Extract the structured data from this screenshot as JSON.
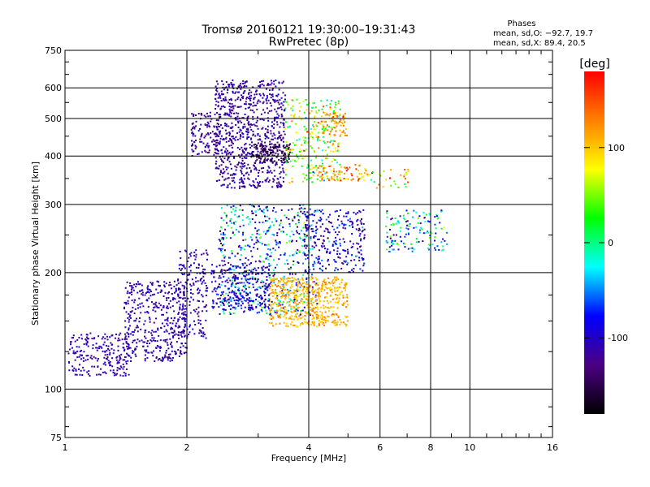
{
  "chart_data": {
    "type": "scatter",
    "title": "Tromsø 20160121 19:30:00–19:31:43",
    "subtitle": "RwPretec (8p)",
    "xlabel": "Frequency [MHz]",
    "ylabel": "Stationary phase Virtual Height [km]",
    "xscale": "log",
    "yscale": "log",
    "xlim": [
      1,
      16
    ],
    "ylim": [
      75,
      750
    ],
    "xticks": [
      1,
      2,
      4,
      6,
      8,
      10,
      16
    ],
    "yticks": [
      75,
      100,
      200,
      300,
      400,
      500,
      600,
      750
    ],
    "grid": true,
    "stats": {
      "heading": "Phases",
      "line_o": "mean, sd,O: −92.7, 19.7",
      "line_x": "mean, sd,X:  89.4, 20.5"
    },
    "colorbar": {
      "label": "[deg]",
      "range": [
        -180,
        180
      ],
      "ticks": [
        100,
        0,
        -100
      ],
      "colors": [
        "#000000",
        "#4b0082",
        "#0000ff",
        "#00ffff",
        "#00ff00",
        "#ffff00",
        "#ff8000",
        "#ff0000"
      ]
    },
    "clusters": [
      {
        "fmin": 1.02,
        "fmax": 1.45,
        "hmin": 108,
        "hmax": 140,
        "phase": -110,
        "sd": 12,
        "n": 220
      },
      {
        "fmin": 1.4,
        "fmax": 2.0,
        "hmin": 118,
        "hmax": 190,
        "phase": -110,
        "sd": 15,
        "n": 420
      },
      {
        "fmin": 1.9,
        "fmax": 2.25,
        "hmin": 135,
        "hmax": 230,
        "phase": -110,
        "sd": 15,
        "n": 180
      },
      {
        "fmin": 2.05,
        "fmax": 2.4,
        "hmin": 400,
        "hmax": 520,
        "phase": -120,
        "sd": 15,
        "n": 120
      },
      {
        "fmin": 2.35,
        "fmax": 3.5,
        "hmin": 330,
        "hmax": 630,
        "phase": -115,
        "sd": 20,
        "n": 780
      },
      {
        "fmin": 2.9,
        "fmax": 3.6,
        "hmin": 385,
        "hmax": 430,
        "phase": -150,
        "sd": 10,
        "n": 140
      },
      {
        "fmin": 3.5,
        "fmax": 4.8,
        "hmin": 340,
        "hmax": 560,
        "phase": 60,
        "sd": 70,
        "n": 260
      },
      {
        "fmin": 4.3,
        "fmax": 5.0,
        "hmin": 450,
        "hmax": 520,
        "phase": 120,
        "sd": 25,
        "n": 60
      },
      {
        "fmin": 4.2,
        "fmax": 5.6,
        "hmin": 345,
        "hmax": 380,
        "phase": 110,
        "sd": 50,
        "n": 80
      },
      {
        "fmin": 2.4,
        "fmax": 4.2,
        "hmin": 155,
        "hmax": 300,
        "phase": -60,
        "sd": 80,
        "n": 650
      },
      {
        "fmin": 3.9,
        "fmax": 5.5,
        "hmin": 200,
        "hmax": 290,
        "phase": -100,
        "sd": 40,
        "n": 260
      },
      {
        "fmin": 3.2,
        "fmax": 5.0,
        "hmin": 145,
        "hmax": 195,
        "phase": 110,
        "sd": 20,
        "n": 520
      },
      {
        "fmin": 2.3,
        "fmax": 3.2,
        "hmin": 160,
        "hmax": 210,
        "phase": -100,
        "sd": 25,
        "n": 220
      },
      {
        "fmin": 6.2,
        "fmax": 8.8,
        "hmin": 225,
        "hmax": 290,
        "phase": -40,
        "sd": 80,
        "n": 140
      },
      {
        "fmin": 5.6,
        "fmax": 7.2,
        "hmin": 330,
        "hmax": 370,
        "phase": 80,
        "sd": 60,
        "n": 30
      }
    ]
  }
}
